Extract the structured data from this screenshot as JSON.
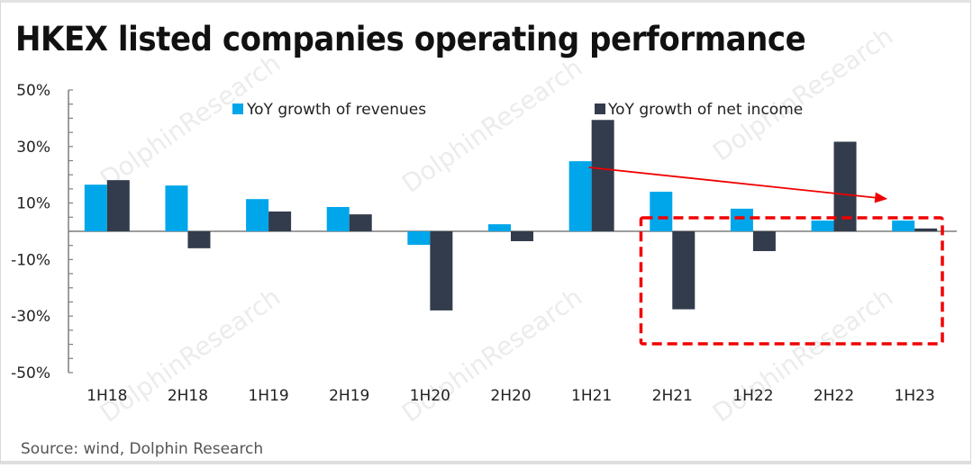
{
  "title": "HKEX listed companies operating performance",
  "source": "Source: wind, Dolphin Research",
  "watermark": "DolphinResearch",
  "colors": {
    "revenue": "#00A6EA",
    "net_income": "#323C4C",
    "annotation": "#F00000",
    "axis": "#7f7f7f"
  },
  "chart_data": {
    "type": "bar",
    "title": "HKEX listed companies operating performance",
    "xlabel": "",
    "ylabel": "",
    "categories": [
      "1H18",
      "2H18",
      "1H19",
      "2H19",
      "1H20",
      "2H20",
      "1H21",
      "2H21",
      "1H22",
      "2H22",
      "1H23"
    ],
    "series": [
      {
        "name": "YoY growth of revenues",
        "values": [
          16.5,
          16.2,
          11.4,
          8.6,
          -4.8,
          2.5,
          24.8,
          14.0,
          8.0,
          3.8,
          3.8
        ]
      },
      {
        "name": "YoY growth of net income",
        "values": [
          18.1,
          -6.0,
          7.0,
          6.0,
          -28.0,
          -3.5,
          39.4,
          -27.6,
          -7.0,
          31.7,
          1.0
        ]
      }
    ],
    "ylim": [
      -50,
      50
    ],
    "yticks": [
      50,
      30,
      10,
      -10,
      -30,
      -50
    ],
    "ytick_labels": [
      "50%",
      "30%",
      "10%",
      "-10%",
      "-30%",
      "-50%"
    ],
    "grid": false,
    "legend": "top",
    "annotations": [
      {
        "type": "arrow",
        "from_category": "1H21",
        "to_category": "1H23",
        "meaning": "declining trend"
      },
      {
        "type": "dashed-box",
        "from_category": "2H21",
        "to_category": "1H23",
        "meaning": "highlight recent periods"
      }
    ]
  }
}
